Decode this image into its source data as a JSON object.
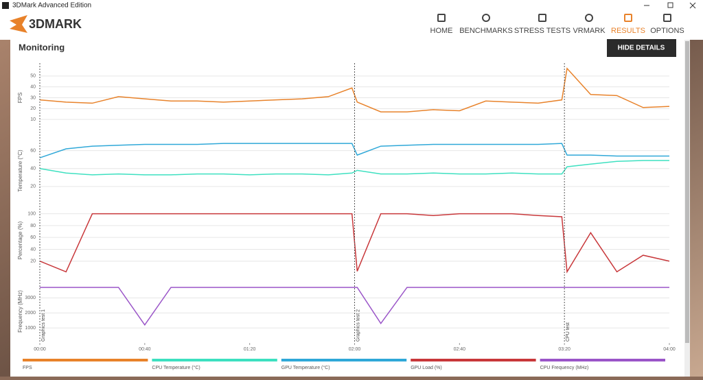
{
  "window": {
    "title": "3DMark Advanced Edition"
  },
  "header": {
    "logo": "3DMARK",
    "nav": [
      "HOME",
      "BENCHMARKS",
      "STRESS TESTS",
      "VRMARK",
      "RESULTS",
      "OPTIONS"
    ]
  },
  "page": {
    "title": "Monitoring",
    "button": "HIDE DETAILS"
  },
  "chart_data": [
    {
      "type": "line",
      "ylabel": "FPS",
      "x": [
        0,
        10,
        20,
        30,
        40,
        50,
        60,
        70,
        80,
        90,
        100,
        110,
        119,
        121,
        130,
        140,
        150,
        160,
        170,
        180,
        190,
        199,
        201,
        210,
        220,
        230,
        240
      ],
      "xlim": [
        0,
        240
      ],
      "ylim": [
        0,
        60
      ],
      "yticks": [
        10,
        20,
        30,
        40,
        50
      ],
      "grid": true,
      "series": [
        {
          "name": "FPS",
          "color": "#e8822a",
          "values": [
            28,
            26,
            25,
            31,
            29,
            27,
            27,
            26,
            27,
            28,
            29,
            31,
            39,
            26,
            17,
            17,
            19,
            18,
            27,
            26,
            25,
            28,
            57,
            33,
            32,
            21,
            22
          ]
        }
      ]
    },
    {
      "type": "line",
      "ylabel": "Temperature (°C)",
      "x": [
        0,
        10,
        20,
        30,
        40,
        50,
        60,
        70,
        80,
        90,
        100,
        110,
        119,
        121,
        130,
        140,
        150,
        160,
        170,
        180,
        190,
        199,
        201,
        210,
        220,
        230,
        240
      ],
      "xlim": [
        0,
        240
      ],
      "ylim": [
        0,
        75
      ],
      "yticks": [
        20,
        40,
        60
      ],
      "grid": true,
      "series": [
        {
          "name": "CPU Temperature (°C)",
          "color": "#3de0c0",
          "values": [
            40,
            35,
            33,
            34,
            33,
            33,
            34,
            34,
            33,
            34,
            34,
            33,
            35,
            38,
            34,
            34,
            35,
            34,
            34,
            35,
            34,
            34,
            42,
            45,
            48,
            49,
            49
          ]
        },
        {
          "name": "GPU Temperature (°C)",
          "color": "#2fa8d8",
          "values": [
            52,
            62,
            65,
            66,
            67,
            67,
            67,
            68,
            68,
            68,
            68,
            68,
            68,
            55,
            65,
            66,
            67,
            67,
            67,
            67,
            67,
            68,
            55,
            55,
            54,
            54,
            54
          ]
        }
      ]
    },
    {
      "type": "line",
      "ylabel": "Percentage (%)",
      "x": [
        0,
        10,
        20,
        30,
        40,
        50,
        60,
        70,
        80,
        90,
        100,
        110,
        119,
        121,
        130,
        140,
        150,
        160,
        170,
        180,
        190,
        199,
        201,
        210,
        220,
        230,
        240
      ],
      "xlim": [
        0,
        240
      ],
      "ylim": [
        0,
        110
      ],
      "yticks": [
        20,
        40,
        60,
        80,
        100
      ],
      "grid": true,
      "series": [
        {
          "name": "GPU Load (%)",
          "color": "#c8373a",
          "values": [
            20,
            2,
            100,
            100,
            100,
            100,
            100,
            100,
            100,
            100,
            100,
            100,
            100,
            3,
            100,
            100,
            97,
            100,
            100,
            100,
            97,
            95,
            2,
            68,
            2,
            30,
            20
          ]
        }
      ]
    },
    {
      "type": "line",
      "ylabel": "Frequency (MHz)",
      "x": [
        0,
        10,
        20,
        30,
        40,
        50,
        60,
        70,
        80,
        90,
        100,
        110,
        119,
        121,
        130,
        140,
        150,
        160,
        170,
        180,
        190,
        199,
        201,
        210,
        220,
        230,
        240
      ],
      "xlim": [
        0,
        240
      ],
      "ylim": [
        0,
        4200
      ],
      "yticks": [
        1000,
        2000,
        3000
      ],
      "grid": true,
      "xticks": [
        {
          "value": 0,
          "label": "00:00"
        },
        {
          "value": 40,
          "label": "00:40"
        },
        {
          "value": 80,
          "label": "01:20"
        },
        {
          "value": 120,
          "label": "02:00"
        },
        {
          "value": 160,
          "label": "02:40"
        },
        {
          "value": 200,
          "label": "03:20"
        },
        {
          "value": 240,
          "label": "04:00"
        }
      ],
      "annotations": [
        {
          "x": 0,
          "label": "Graphics test 1"
        },
        {
          "x": 120,
          "label": "Graphics test 2"
        },
        {
          "x": 200,
          "label": "CPU test"
        }
      ],
      "series": [
        {
          "name": "CPU Frequency (MHz)",
          "color": "#9a55c8",
          "values": [
            3700,
            3700,
            3700,
            3700,
            1200,
            3700,
            3700,
            3700,
            3700,
            3700,
            3700,
            3700,
            3700,
            3700,
            1300,
            3700,
            3700,
            3700,
            3700,
            3700,
            3700,
            3700,
            3700,
            3700,
            3700,
            3700,
            3700
          ]
        }
      ]
    }
  ]
}
